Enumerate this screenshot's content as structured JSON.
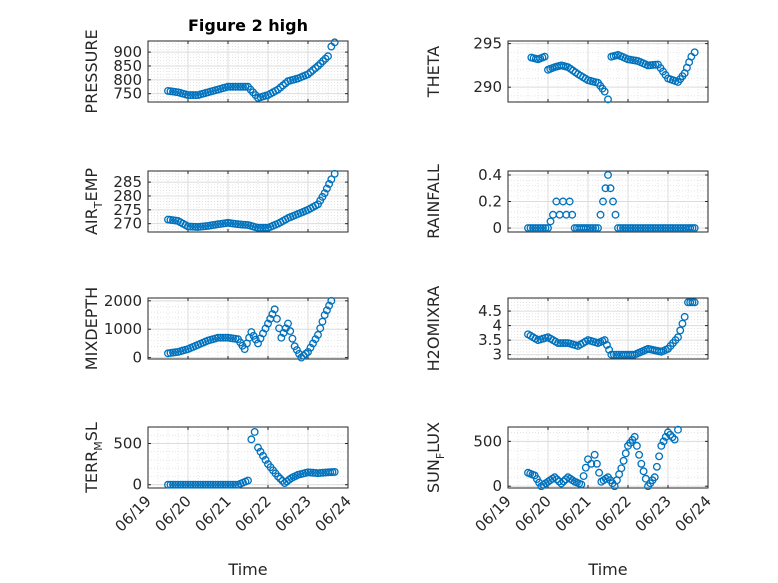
{
  "chart_data": [
    {
      "type": "scatter",
      "title": "Figure 2 high",
      "ylabel": "PRESSURE",
      "ylabel_parts": [
        "PRESSURE"
      ],
      "xlim": [
        "06/19",
        "06/24"
      ],
      "ylim": [
        720,
        940
      ],
      "yticks": [
        750,
        800,
        850,
        900
      ],
      "grid": true,
      "points": [
        [
          "06/19 12:00",
          760
        ],
        [
          "06/19 18:00",
          755
        ],
        [
          "06/20 00:00",
          745
        ],
        [
          "06/20 06:00",
          745
        ],
        [
          "06/20 12:00",
          755
        ],
        [
          "06/20 18:00",
          765
        ],
        [
          "06/21 00:00",
          775
        ],
        [
          "06/21 06:00",
          775
        ],
        [
          "06/21 12:00",
          775
        ],
        [
          "06/21 18:00",
          735
        ],
        [
          "06/22 00:00",
          745
        ],
        [
          "06/22 06:00",
          765
        ],
        [
          "06/22 12:00",
          795
        ],
        [
          "06/22 18:00",
          805
        ],
        [
          "06/23 00:00",
          820
        ],
        [
          "06/23 06:00",
          850
        ],
        [
          "06/23 12:00",
          885
        ],
        [
          "06/23 14:00",
          920
        ],
        [
          "06/23 16:00",
          935
        ]
      ]
    },
    {
      "type": "scatter",
      "title": "",
      "ylabel": "THETA",
      "ylabel_parts": [
        "THETA"
      ],
      "xlim": [
        "06/19",
        "06/24"
      ],
      "ylim": [
        288.3,
        295.3
      ],
      "yticks": [
        290,
        295
      ],
      "grid": true,
      "points": [
        [
          "06/19 14:00",
          293.4
        ],
        [
          "06/19 18:00",
          293.2
        ],
        [
          "06/19 22:00",
          293.5
        ],
        [
          "06/20 00:00",
          292.0
        ],
        [
          "06/20 04:00",
          292.3
        ],
        [
          "06/20 08:00",
          292.5
        ],
        [
          "06/20 12:00",
          292.3
        ],
        [
          "06/20 18:00",
          291.5
        ],
        [
          "06/21 00:00",
          290.8
        ],
        [
          "06/21 06:00",
          290.5
        ],
        [
          "06/21 10:00",
          289.5
        ],
        [
          "06/21 12:00",
          288.6
        ],
        [
          "06/21 14:00",
          293.5
        ],
        [
          "06/21 18:00",
          293.7
        ],
        [
          "06/22 00:00",
          293.2
        ],
        [
          "06/22 06:00",
          293.0
        ],
        [
          "06/22 12:00",
          292.5
        ],
        [
          "06/22 18:00",
          292.6
        ],
        [
          "06/23 00:00",
          291.0
        ],
        [
          "06/23 06:00",
          290.6
        ],
        [
          "06/23 10:00",
          291.6
        ],
        [
          "06/23 14:00",
          293.5
        ],
        [
          "06/23 16:00",
          294.0
        ]
      ]
    },
    {
      "type": "scatter",
      "title": "",
      "ylabel": "AIR_TEMP",
      "ylabel_parts": [
        "AIR",
        "T",
        "EMP"
      ],
      "xlim": [
        "06/19",
        "06/24"
      ],
      "ylim": [
        267,
        289
      ],
      "yticks": [
        270,
        275,
        280,
        285
      ],
      "grid": true,
      "points": [
        [
          "06/19 12:00",
          271.5
        ],
        [
          "06/19 18:00",
          271.0
        ],
        [
          "06/20 00:00",
          269.0
        ],
        [
          "06/20 06:00",
          268.8
        ],
        [
          "06/20 12:00",
          269.2
        ],
        [
          "06/20 18:00",
          269.8
        ],
        [
          "06/21 00:00",
          270.3
        ],
        [
          "06/21 06:00",
          269.8
        ],
        [
          "06/21 12:00",
          269.5
        ],
        [
          "06/21 18:00",
          268.5
        ],
        [
          "06/22 00:00",
          268.5
        ],
        [
          "06/22 06:00",
          270.0
        ],
        [
          "06/22 12:00",
          272.0
        ],
        [
          "06/22 18:00",
          273.5
        ],
        [
          "06/23 00:00",
          275.0
        ],
        [
          "06/23 06:00",
          277.0
        ],
        [
          "06/23 10:00",
          281.0
        ],
        [
          "06/23 14:00",
          286.0
        ],
        [
          "06/23 16:00",
          288.0
        ]
      ]
    },
    {
      "type": "scatter",
      "title": "",
      "ylabel": "RAINFALL",
      "ylabel_parts": [
        "RAINFALL"
      ],
      "xlim": [
        "06/19",
        "06/24"
      ],
      "ylim": [
        -0.03,
        0.43
      ],
      "yticks": [
        0,
        0.2,
        0.4
      ],
      "grid": true,
      "points": [
        [
          "06/19 12:00",
          0
        ],
        [
          "06/19 18:00",
          0
        ],
        [
          "06/20 00:00",
          0
        ],
        [
          "06/20 03:00",
          0.1
        ],
        [
          "06/20 05:00",
          0.2
        ],
        [
          "06/20 07:00",
          0.1
        ],
        [
          "06/20 09:00",
          0.2
        ],
        [
          "06/20 11:00",
          0.1
        ],
        [
          "06/20 13:00",
          0.2
        ],
        [
          "06/20 16:00",
          0
        ],
        [
          "06/21 00:00",
          0
        ],
        [
          "06/21 06:00",
          0
        ],
        [
          "06/21 12:00",
          0.4
        ],
        [
          "06/21 18:00",
          0
        ],
        [
          "06/22 00:00",
          0
        ],
        [
          "06/22 12:00",
          0
        ],
        [
          "06/23 00:00",
          0
        ],
        [
          "06/23 12:00",
          0
        ],
        [
          "06/23 16:00",
          0
        ]
      ]
    },
    {
      "type": "scatter",
      "title": "",
      "ylabel": "MIXDEPTH",
      "ylabel_parts": [
        "MIXDEPTH"
      ],
      "xlim": [
        "06/19",
        "06/24"
      ],
      "ylim": [
        -50,
        2100
      ],
      "yticks": [
        0,
        1000,
        2000
      ],
      "grid": true,
      "points": [
        [
          "06/19 12:00",
          150
        ],
        [
          "06/19 18:00",
          200
        ],
        [
          "06/20 00:00",
          300
        ],
        [
          "06/20 06:00",
          450
        ],
        [
          "06/20 12:00",
          600
        ],
        [
          "06/20 18:00",
          700
        ],
        [
          "06/21 00:00",
          700
        ],
        [
          "06/21 06:00",
          650
        ],
        [
          "06/21 10:00",
          300
        ],
        [
          "06/21 14:00",
          900
        ],
        [
          "06/21 18:00",
          500
        ],
        [
          "06/22 00:00",
          1200
        ],
        [
          "06/22 04:00",
          1700
        ],
        [
          "06/22 08:00",
          700
        ],
        [
          "06/22 12:00",
          1200
        ],
        [
          "06/22 16:00",
          400
        ],
        [
          "06/22 20:00",
          0
        ],
        [
          "06/23 00:00",
          200
        ],
        [
          "06/23 06:00",
          800
        ],
        [
          "06/23 10:00",
          1500
        ],
        [
          "06/23 14:00",
          2000
        ]
      ]
    },
    {
      "type": "scatter",
      "title": "",
      "ylabel": "H2OMIXRA",
      "ylabel_parts": [
        "H2OMIXRA"
      ],
      "xlim": [
        "06/19",
        "06/24"
      ],
      "ylim": [
        2.85,
        4.95
      ],
      "yticks": [
        3,
        3.5,
        4,
        4.5
      ],
      "grid": true,
      "points": [
        [
          "06/19 12:00",
          3.7
        ],
        [
          "06/19 18:00",
          3.5
        ],
        [
          "06/20 00:00",
          3.6
        ],
        [
          "06/20 06:00",
          3.4
        ],
        [
          "06/20 12:00",
          3.4
        ],
        [
          "06/20 18:00",
          3.3
        ],
        [
          "06/21 00:00",
          3.5
        ],
        [
          "06/21 06:00",
          3.4
        ],
        [
          "06/21 10:00",
          3.5
        ],
        [
          "06/21 14:00",
          3.0
        ],
        [
          "06/21 20:00",
          3.0
        ],
        [
          "06/22 04:00",
          3.0
        ],
        [
          "06/22 12:00",
          3.2
        ],
        [
          "06/22 20:00",
          3.1
        ],
        [
          "06/23 00:00",
          3.2
        ],
        [
          "06/23 06:00",
          3.6
        ],
        [
          "06/23 10:00",
          4.3
        ],
        [
          "06/23 12:00",
          4.8
        ],
        [
          "06/23 16:00",
          4.8
        ]
      ]
    },
    {
      "type": "scatter",
      "title": "",
      "ylabel": "TERR_MSL",
      "ylabel_parts": [
        "TERR",
        "M",
        "SL"
      ],
      "xlim": [
        "06/19",
        "06/24"
      ],
      "ylim": [
        -40,
        700
      ],
      "yticks": [
        0,
        500
      ],
      "grid": true,
      "points": [
        [
          "06/19 12:00",
          0
        ],
        [
          "06/19 18:00",
          0
        ],
        [
          "06/20 00:00",
          0
        ],
        [
          "06/20 06:00",
          0
        ],
        [
          "06/20 12:00",
          0
        ],
        [
          "06/20 18:00",
          0
        ],
        [
          "06/21 00:00",
          0
        ],
        [
          "06/21 06:00",
          0
        ],
        [
          "06/21 12:00",
          50
        ],
        [
          "06/21 14:00",
          550
        ],
        [
          "06/21 16:00",
          640
        ],
        [
          "06/21 18:00",
          450
        ],
        [
          "06/22 00:00",
          250
        ],
        [
          "06/22 06:00",
          100
        ],
        [
          "06/22 10:00",
          20
        ],
        [
          "06/22 14:00",
          80
        ],
        [
          "06/22 18:00",
          120
        ],
        [
          "06/23 00:00",
          150
        ],
        [
          "06/23 06:00",
          140
        ],
        [
          "06/23 12:00",
          150
        ],
        [
          "06/23 16:00",
          155
        ]
      ]
    },
    {
      "type": "scatter",
      "title": "",
      "ylabel": "SUN_FLUX",
      "ylabel_parts": [
        "SUN",
        "F",
        "LUX"
      ],
      "xlim": [
        "06/19",
        "06/24"
      ],
      "ylim": [
        -20,
        660
      ],
      "yticks": [
        0,
        500
      ],
      "grid": true,
      "points": [
        [
          "06/19 12:00",
          150
        ],
        [
          "06/19 16:00",
          120
        ],
        [
          "06/19 20:00",
          0
        ],
        [
          "06/20 00:00",
          50
        ],
        [
          "06/20 04:00",
          100
        ],
        [
          "06/20 08:00",
          30
        ],
        [
          "06/20 12:00",
          100
        ],
        [
          "06/20 16:00",
          50
        ],
        [
          "06/20 20:00",
          20
        ],
        [
          "06/21 00:00",
          300
        ],
        [
          "06/21 02:00",
          250
        ],
        [
          "06/21 04:00",
          350
        ],
        [
          "06/21 08:00",
          50
        ],
        [
          "06/21 12:00",
          100
        ],
        [
          "06/21 16:00",
          0
        ],
        [
          "06/21 20:00",
          200
        ],
        [
          "06/22 00:00",
          450
        ],
        [
          "06/22 04:00",
          550
        ],
        [
          "06/22 08:00",
          250
        ],
        [
          "06/22 12:00",
          0
        ],
        [
          "06/22 16:00",
          100
        ],
        [
          "06/22 20:00",
          450
        ],
        [
          "06/23 00:00",
          600
        ],
        [
          "06/23 04:00",
          520
        ],
        [
          "06/23 06:00",
          630
        ]
      ]
    }
  ],
  "x_axis": {
    "label": "Time",
    "tick_labels": [
      "06/19",
      "06/20",
      "06/21",
      "06/22",
      "06/23",
      "06/24"
    ]
  },
  "colors": {
    "marker": "#0072BD",
    "axis": "#262626",
    "grid": "#dcdcdc"
  }
}
